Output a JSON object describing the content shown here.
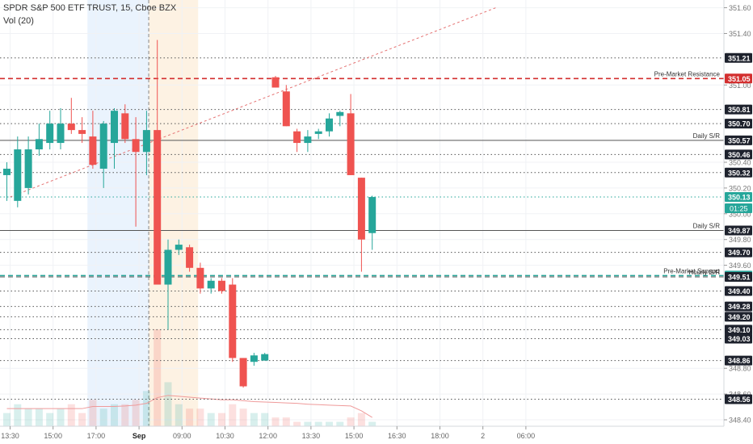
{
  "header": {
    "title": "SPDR S&P 500 ETF TRUST, 15, Cboe BZX",
    "indicator": "Vol (20)"
  },
  "chart_data": {
    "type": "candlestick",
    "price_axis": {
      "range": [
        348.35,
        351.66
      ],
      "ticks": [
        "351.60",
        "351.40",
        "351.00",
        "350.40",
        "350.20",
        "350.00",
        "349.80",
        "349.60",
        "348.80",
        "348.60",
        "348.40"
      ]
    },
    "time_axis": {
      "labels": [
        {
          "t": 0.3,
          "text": "13:30"
        },
        {
          "t": 4.3,
          "text": "15:00"
        },
        {
          "t": 8.3,
          "text": "17:00"
        },
        {
          "t": 12.3,
          "text": "Sep",
          "bold": true
        },
        {
          "t": 16.3,
          "text": "09:00"
        },
        {
          "t": 20.3,
          "text": "10:30"
        },
        {
          "t": 24.3,
          "text": "12:00"
        },
        {
          "t": 28.3,
          "text": "13:30"
        },
        {
          "t": 32.3,
          "text": "15:00"
        },
        {
          "t": 36.3,
          "text": "16:30"
        },
        {
          "t": 40.3,
          "text": "18:00"
        },
        {
          "t": 44.3,
          "text": "2"
        },
        {
          "t": 48.3,
          "text": "06:00"
        }
      ]
    },
    "sessions": [
      {
        "start": 7.5,
        "end": 13.2,
        "color": "#eaf3fd"
      },
      {
        "start": 13.2,
        "end": 17.8,
        "color": "#fdf2e3"
      }
    ],
    "session_divider": 13.2,
    "levels": [
      {
        "price": 351.21,
        "label": "351.21",
        "style": "dotted",
        "color": "#555555"
      },
      {
        "price": 351.05,
        "label": "351.05",
        "style": "dashed",
        "color": "#d32f2f",
        "width": 1.6,
        "name": "Pre-Market Resistance"
      },
      {
        "price": 350.81,
        "label": "350.81",
        "style": "dotted",
        "color": "#555555"
      },
      {
        "price": 350.7,
        "label": "350.70",
        "style": "dotted",
        "color": "#555555"
      },
      {
        "price": 350.57,
        "label": "350.57",
        "style": "solid",
        "color": "#555555",
        "name": "Daily S/R"
      },
      {
        "price": 350.46,
        "label": "350.46",
        "style": "dotted",
        "color": "#555555"
      },
      {
        "price": 350.32,
        "label": "350.32",
        "style": "dotted",
        "color": "#555555"
      },
      {
        "price": 350.13,
        "label": "350.13",
        "style": "dotted",
        "color": "#26a69a",
        "tag": "#26a69a"
      },
      {
        "price": 349.87,
        "label": "349.87",
        "style": "solid",
        "color": "#555555",
        "name": "Daily S/R"
      },
      {
        "price": 349.7,
        "label": "349.70",
        "style": "dotted",
        "color": "#555555"
      },
      {
        "price": 349.52,
        "label": "349.52",
        "style": "dashed",
        "color": "#26a69a",
        "tag": "#26a69a",
        "width": 1.4,
        "name": "Pre-Market Support"
      },
      {
        "price": 349.51,
        "label": "349.51",
        "style": "dashed",
        "color": "#555555",
        "name": "Hourly S/R"
      },
      {
        "price": 349.4,
        "label": "349.40",
        "style": "dotted",
        "color": "#555555"
      },
      {
        "price": 349.28,
        "label": "349.28",
        "style": "dotted",
        "color": "#555555"
      },
      {
        "price": 349.2,
        "label": "349.20",
        "style": "dotted",
        "color": "#555555"
      },
      {
        "price": 349.1,
        "label": "349.10",
        "style": "dotted",
        "color": "#555555"
      },
      {
        "price": 349.03,
        "label": "349.03",
        "style": "dotted",
        "color": "#555555"
      },
      {
        "price": 348.86,
        "label": "348.86",
        "style": "dotted",
        "color": "#555555"
      },
      {
        "price": 348.56,
        "label": "348.56",
        "style": "dotted",
        "color": "#555555"
      }
    ],
    "countdown": "01:25",
    "trendline": {
      "t1": 0.3,
      "p1": 350.13,
      "t2": 45.5,
      "p2": 351.6
    },
    "candles": [
      {
        "o": 350.3,
        "h": 350.4,
        "l": 350.1,
        "c": 350.35
      },
      {
        "o": 350.1,
        "h": 350.6,
        "l": 350.05,
        "c": 350.5
      },
      {
        "o": 350.2,
        "h": 350.6,
        "l": 350.15,
        "c": 350.5
      },
      {
        "o": 350.5,
        "h": 350.7,
        "l": 350.45,
        "c": 350.58
      },
      {
        "o": 350.55,
        "h": 350.8,
        "l": 350.5,
        "c": 350.7
      },
      {
        "o": 350.55,
        "h": 350.82,
        "l": 350.5,
        "c": 350.7
      },
      {
        "o": 350.7,
        "h": 350.9,
        "l": 350.62,
        "c": 350.65
      },
      {
        "o": 350.65,
        "h": 350.75,
        "l": 350.55,
        "c": 350.62
      },
      {
        "o": 350.6,
        "h": 350.8,
        "l": 350.35,
        "c": 350.38
      },
      {
        "o": 350.35,
        "h": 350.72,
        "l": 350.2,
        "c": 350.7
      },
      {
        "o": 350.55,
        "h": 350.82,
        "l": 350.35,
        "c": 350.8
      },
      {
        "o": 350.78,
        "h": 350.85,
        "l": 350.55,
        "c": 350.58
      },
      {
        "o": 350.58,
        "h": 350.75,
        "l": 349.9,
        "c": 350.48
      },
      {
        "o": 350.48,
        "h": 350.8,
        "l": 350.3,
        "c": 350.65
      },
      {
        "o": 350.65,
        "h": 351.35,
        "l": 349.45,
        "c": 349.45
      },
      {
        "o": 349.45,
        "h": 349.8,
        "l": 349.1,
        "c": 349.72
      },
      {
        "o": 349.72,
        "h": 349.8,
        "l": 349.68,
        "c": 349.76
      },
      {
        "o": 349.74,
        "h": 349.76,
        "l": 349.55,
        "c": 349.58
      },
      {
        "o": 349.58,
        "h": 349.62,
        "l": 349.38,
        "c": 349.42
      },
      {
        "o": 349.42,
        "h": 349.5,
        "l": 349.38,
        "c": 349.48
      },
      {
        "o": 349.48,
        "h": 349.5,
        "l": 349.38,
        "c": 349.4
      },
      {
        "o": 349.45,
        "h": 349.5,
        "l": 348.85,
        "c": 348.88
      },
      {
        "o": 348.88,
        "h": 348.88,
        "l": 348.65,
        "c": 348.66
      },
      {
        "o": 348.85,
        "h": 348.92,
        "l": 348.82,
        "c": 348.9
      },
      {
        "o": 348.86,
        "h": 348.92,
        "l": 348.86,
        "c": 348.91
      },
      {
        "o": 351.06,
        "h": 351.07,
        "l": 350.98,
        "c": 350.98
      },
      {
        "o": 350.95,
        "h": 351.0,
        "l": 350.68,
        "c": 350.68
      },
      {
        "o": 350.64,
        "h": 350.66,
        "l": 350.48,
        "c": 350.55
      },
      {
        "o": 350.55,
        "h": 350.65,
        "l": 350.48,
        "c": 350.6
      },
      {
        "o": 350.62,
        "h": 350.66,
        "l": 350.58,
        "c": 350.64
      },
      {
        "o": 350.64,
        "h": 350.78,
        "l": 350.6,
        "c": 350.74
      },
      {
        "o": 350.76,
        "h": 350.8,
        "l": 350.68,
        "c": 350.79
      },
      {
        "o": 350.78,
        "h": 350.93,
        "l": 350.3,
        "c": 350.3
      },
      {
        "o": 350.28,
        "h": 350.28,
        "l": 349.55,
        "c": 349.8
      },
      {
        "o": 349.85,
        "h": 350.14,
        "l": 349.72,
        "c": 350.13
      }
    ],
    "volume": {
      "up_color": "#26a69a",
      "down_color": "#ef5350",
      "values": [
        3,
        5,
        4,
        4,
        3,
        4,
        5,
        3,
        6,
        4,
        5,
        5,
        6,
        8,
        22,
        10,
        5,
        4,
        4,
        3,
        3,
        5,
        4,
        3,
        3,
        2,
        2,
        1,
        1,
        1,
        1,
        1,
        2,
        3,
        1
      ],
      "ma": [
        4,
        4,
        4,
        4,
        4,
        4,
        4,
        4,
        4.5,
        4.5,
        4.5,
        4.6,
        4.8,
        5.2,
        6.5,
        7,
        6.8,
        6.6,
        6.4,
        6.2,
        6,
        6,
        5.8,
        5.6,
        5.5,
        5.4,
        5.3,
        5.2,
        5,
        4.9,
        4.8,
        4.7,
        4.6,
        3.5,
        2
      ]
    }
  }
}
